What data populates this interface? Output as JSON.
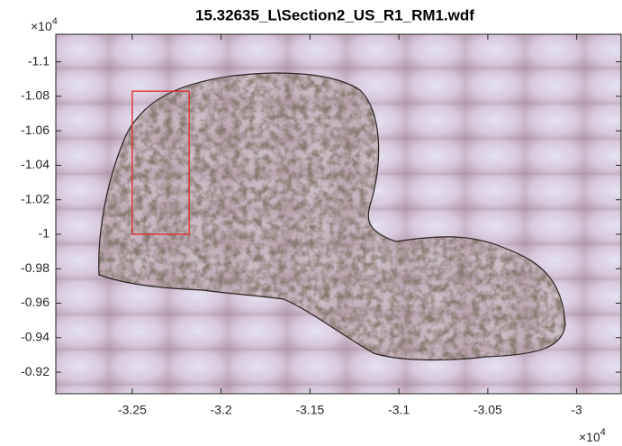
{
  "chart_data": {
    "type": "image",
    "title": "15.32635_L\\Section2_US_R1_RM1.wdf",
    "xlim": [
      -32930,
      -29750
    ],
    "ylim": [
      -11160,
      -9075
    ],
    "y_reversed": true,
    "xticks": [
      {
        "value": -32500,
        "label": "-3.25"
      },
      {
        "value": -32000,
        "label": "-3.2"
      },
      {
        "value": -31500,
        "label": "-3.15"
      },
      {
        "value": -31000,
        "label": "-3.1"
      },
      {
        "value": -30500,
        "label": "-3.05"
      },
      {
        "value": -30000,
        "label": "-3"
      }
    ],
    "yticks": [
      {
        "value": -11000,
        "label": "-1.1"
      },
      {
        "value": -10800,
        "label": "-1.08"
      },
      {
        "value": -10600,
        "label": "-1.06"
      },
      {
        "value": -10400,
        "label": "-1.04"
      },
      {
        "value": -10200,
        "label": "-1.02"
      },
      {
        "value": -10000,
        "label": "-1"
      },
      {
        "value": -9800,
        "label": "-0.98"
      },
      {
        "value": -9600,
        "label": "-0.96"
      },
      {
        "value": -9400,
        "label": "-0.94"
      },
      {
        "value": -9200,
        "label": "-0.92"
      }
    ],
    "x_multiplier": {
      "base": "×10",
      "exponent": "4"
    },
    "y_multiplier": {
      "base": "×10",
      "exponent": "4"
    },
    "rectangle": {
      "x": [
        -32500,
        -32180
      ],
      "y": [
        -10830,
        -10000
      ],
      "color": "#e8262a"
    }
  }
}
